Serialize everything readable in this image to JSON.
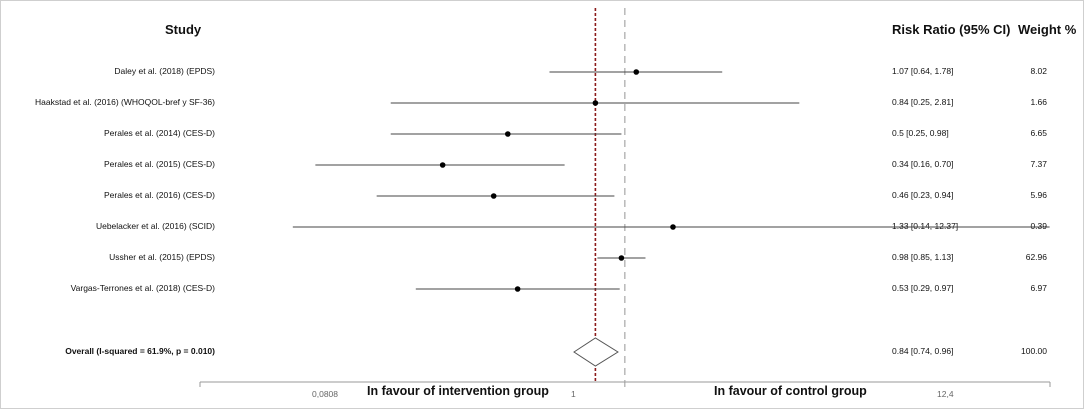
{
  "chart_data": {
    "type": "forest",
    "header": {
      "study": "Study",
      "rr": "Risk Ratio (95% CI)",
      "weight": "Weight %"
    },
    "scale": "log",
    "xlim": [
      0.0808,
      12.4
    ],
    "tick_labels": [
      "0,0808",
      "1",
      "12,4"
    ],
    "tick_values": [
      0.0808,
      1,
      12.4
    ],
    "null_value": 1,
    "overall_line_value": 0.84,
    "favour_left": "In favour of intervention group",
    "favour_right": "In favour of control group",
    "studies": [
      {
        "label": "Daley et al. (2018) (EPDS)",
        "rr": 1.07,
        "lo": 0.64,
        "hi": 1.78,
        "ci_text": "1.07 [0.64, 1.78]",
        "weight": "8.02"
      },
      {
        "label": "Haakstad et al. (2016) (WHOQOL-bref y SF-36)",
        "rr": 0.84,
        "lo": 0.25,
        "hi": 2.81,
        "ci_text": "0.84 [0.25, 2.81]",
        "weight": "1.66"
      },
      {
        "label": "Perales et al. (2014) (CES-D)",
        "rr": 0.5,
        "lo": 0.25,
        "hi": 0.98,
        "ci_text": "0.5 [0.25, 0.98]",
        "weight": "6.65"
      },
      {
        "label": "Perales et al. (2015) (CES-D)",
        "rr": 0.34,
        "lo": 0.16,
        "hi": 0.7,
        "ci_text": "0.34 [0.16, 0.70]",
        "weight": "7.37"
      },
      {
        "label": "Perales et al. (2016) (CES-D)",
        "rr": 0.46,
        "lo": 0.23,
        "hi": 0.94,
        "ci_text": "0.46 [0.23, 0.94]",
        "weight": "5.96"
      },
      {
        "label": "Uebelacker et al. (2016) (SCID)",
        "rr": 1.33,
        "lo": 0.14,
        "hi": 12.37,
        "ci_text": "1.33 [0.14, 12.37]",
        "weight": "0.39"
      },
      {
        "label": "Ussher et al. (2015) (EPDS)",
        "rr": 0.98,
        "lo": 0.85,
        "hi": 1.13,
        "ci_text": "0.98 [0.85, 1.13]",
        "weight": "62.96"
      },
      {
        "label": "Vargas-Terrones et al. (2018) (CES-D)",
        "rr": 0.53,
        "lo": 0.29,
        "hi": 0.97,
        "ci_text": "0.53 [0.29, 0.97]",
        "weight": "6.97"
      }
    ],
    "overall": {
      "label": "Overall (I-squared = 61.9%, p = 0.010)",
      "rr": 0.84,
      "lo": 0.74,
      "hi": 0.96,
      "ci_text": "0.84 [0.74, 0.96]",
      "weight": "100.00"
    },
    "colors": {
      "overall_line": "#8b1a1a",
      "null_line": "#a8a8a8",
      "ci_line": "#444444",
      "point": "#000000",
      "axis": "#999999"
    }
  }
}
